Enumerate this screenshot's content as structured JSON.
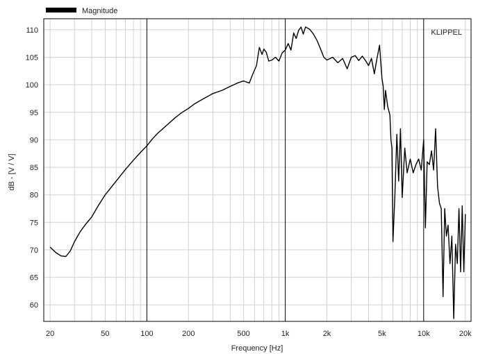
{
  "chart_data": {
    "type": "line",
    "title": "",
    "watermark": "KLIPPEL",
    "xlabel": "Frequency [Hz]",
    "ylabel": "dB - [V / V]",
    "x_scale": "log",
    "xlim": [
      18,
      22000
    ],
    "ylim": [
      57,
      112
    ],
    "grid": true,
    "legend_position": "top-left",
    "x_ticks": [
      {
        "value": 20,
        "label": "20"
      },
      {
        "value": 50,
        "label": "50"
      },
      {
        "value": 100,
        "label": "100"
      },
      {
        "value": 200,
        "label": "200"
      },
      {
        "value": 500,
        "label": "500"
      },
      {
        "value": 1000,
        "label": "1k"
      },
      {
        "value": 2000,
        "label": "2k"
      },
      {
        "value": 5000,
        "label": "5k"
      },
      {
        "value": 10000,
        "label": "10k"
      },
      {
        "value": 20000,
        "label": "20k"
      }
    ],
    "y_ticks": [
      60,
      65,
      70,
      75,
      80,
      85,
      90,
      95,
      100,
      105,
      110
    ],
    "colors": {
      "line": "#000000",
      "minor_grid": "#d2d2d2",
      "decade_grid": "#000000",
      "axis": "#000000"
    },
    "series": [
      {
        "name": "Magnitude",
        "x": [
          20,
          22,
          24,
          26,
          28,
          30,
          33,
          36,
          40,
          45,
          50,
          60,
          70,
          80,
          90,
          100,
          110,
          120,
          140,
          160,
          180,
          200,
          220,
          250,
          300,
          350,
          400,
          450,
          500,
          550,
          580,
          620,
          650,
          680,
          700,
          730,
          760,
          800,
          850,
          900,
          950,
          1000,
          1050,
          1100,
          1150,
          1200,
          1250,
          1300,
          1350,
          1400,
          1500,
          1600,
          1700,
          1800,
          1900,
          2000,
          2200,
          2400,
          2600,
          2800,
          3000,
          3200,
          3400,
          3600,
          3800,
          4000,
          4200,
          4400,
          4600,
          4800,
          5000,
          5100,
          5200,
          5300,
          5500,
          5700,
          5800,
          5900,
          6000,
          6200,
          6400,
          6600,
          6800,
          7000,
          7300,
          7600,
          8000,
          8400,
          8800,
          9200,
          9600,
          10000,
          10300,
          10600,
          11000,
          11400,
          11800,
          12200,
          12600,
          13000,
          13400,
          13800,
          14200,
          14600,
          15000,
          15500,
          16000,
          16500,
          17000,
          17500,
          18000,
          18500,
          19000,
          19500,
          20000
        ],
        "y": [
          70.5,
          69.5,
          68.9,
          68.8,
          69.8,
          71.5,
          73.3,
          74.6,
          76.0,
          78.2,
          80.0,
          82.5,
          84.6,
          86.3,
          87.7,
          88.9,
          90.2,
          91.2,
          92.7,
          94.0,
          95.0,
          95.7,
          96.5,
          97.3,
          98.4,
          99.0,
          99.7,
          100.3,
          100.7,
          100.3,
          101.8,
          103.5,
          106.8,
          105.5,
          106.5,
          105.9,
          104.3,
          104.5,
          105.0,
          104.3,
          105.8,
          106.3,
          107.5,
          106.3,
          109.4,
          108.4,
          109.9,
          110.5,
          109.2,
          110.5,
          110.1,
          109.2,
          108.0,
          106.5,
          105.0,
          104.5,
          105.0,
          104.0,
          104.8,
          102.9,
          105.0,
          105.3,
          104.4,
          105.2,
          104.4,
          103.5,
          104.8,
          102.0,
          104.8,
          107.2,
          101.1,
          99.8,
          95.5,
          99.0,
          96.0,
          94.5,
          90.0,
          88.5,
          71.5,
          80.0,
          91.0,
          82.5,
          92.0,
          79.5,
          88.5,
          84.0,
          86.5,
          84.0,
          85.5,
          86.5,
          84.5,
          90.0,
          74.0,
          86.0,
          85.5,
          88.0,
          84.5,
          92.0,
          81.5,
          78.5,
          77.5,
          61.5,
          77.5,
          72.5,
          74.5,
          67.5,
          72.5,
          57.5,
          71.0,
          67.5,
          77.5,
          66.0,
          78.0,
          66.0,
          76.5
        ]
      }
    ]
  }
}
